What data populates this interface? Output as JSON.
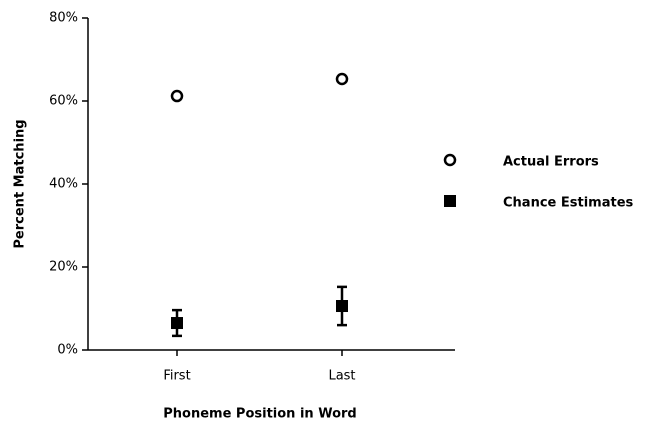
{
  "chart_data": {
    "type": "dot",
    "categories": [
      "First",
      "Last"
    ],
    "xlabel": "Phoneme Position in Word",
    "ylabel": "Percent Matching",
    "ylim": [
      0,
      80
    ],
    "yticks": [
      {
        "value": 0,
        "label": "0%"
      },
      {
        "value": 20,
        "label": "20%"
      },
      {
        "value": 40,
        "label": "40%"
      },
      {
        "value": 60,
        "label": "60%"
      },
      {
        "value": 80,
        "label": "80%"
      }
    ],
    "legend": "right",
    "series": [
      {
        "name": "Actual Errors",
        "color": "#000000",
        "marker": "open-circle",
        "values": [
          61.2,
          65.3
        ]
      },
      {
        "name": "Chance Estimates",
        "color": "#000000",
        "marker": "filled-square",
        "values": [
          6.5,
          10.6
        ],
        "errors": [
          3.1,
          4.6
        ]
      }
    ]
  }
}
